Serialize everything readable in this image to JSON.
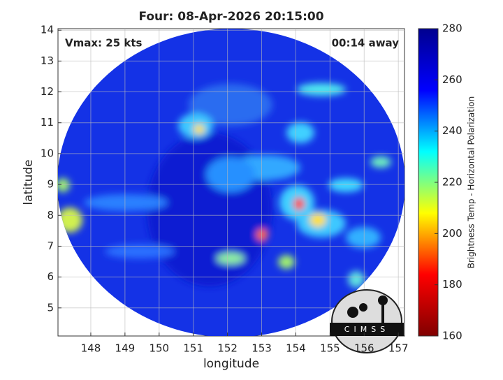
{
  "chart_data": {
    "type": "image",
    "title": "Four: 08-Apr-2026 20:15:00",
    "annotations": [
      "Vmax: 25 kts",
      "00:14 away"
    ],
    "xlabel": "longitude",
    "ylabel": "latitude",
    "xlim": [
      147.04,
      157.18
    ],
    "xticks": [
      148,
      149,
      150,
      151,
      152,
      153,
      154,
      155,
      156,
      157
    ],
    "ylim": [
      4.09,
      14.05
    ],
    "yticks": [
      5,
      6,
      7,
      8,
      9,
      10,
      11,
      12,
      13,
      14
    ],
    "grid": true,
    "colorbar": {
      "label": "Brightness Temp - Horizontal Polarization",
      "clim": [
        160,
        280
      ],
      "ticks": [
        160,
        180,
        200,
        220,
        240,
        260,
        280
      ],
      "colormap": [
        "#800000",
        "#ff0000",
        "#ffff00",
        "#00ffff",
        "#0000ff",
        "#00008f"
      ]
    },
    "logo": "CIMSS"
  }
}
